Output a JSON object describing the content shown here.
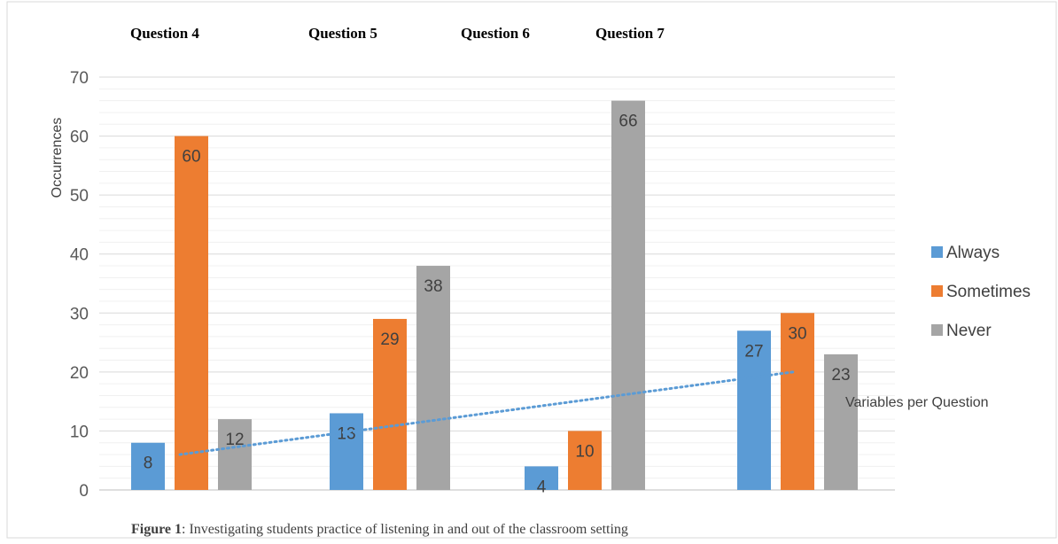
{
  "chart_data": {
    "type": "bar",
    "question_labels": [
      "Question 4",
      "Question 5",
      "Question 6",
      "Question 7"
    ],
    "categories": [
      "",
      "",
      "",
      ""
    ],
    "series": [
      {
        "name": "Always",
        "color": "#5B9BD5",
        "values": [
          8,
          13,
          4,
          27
        ]
      },
      {
        "name": "Sometimes",
        "color": "#ED7D31",
        "values": [
          60,
          29,
          10,
          30
        ]
      },
      {
        "name": "Never",
        "color": "#A5A5A5",
        "values": [
          12,
          38,
          66,
          23
        ]
      }
    ],
    "ylabel": "Occurrences",
    "ylim": [
      0,
      70
    ],
    "yticks": [
      0,
      10,
      20,
      30,
      40,
      50,
      60,
      70
    ],
    "grid": true,
    "legend": "right",
    "trendline": {
      "label": "Variables per Question",
      "style": "dotted",
      "color": "#5B9BD5",
      "start": 6,
      "end": 20
    },
    "caption": {
      "prefix": "Figure 1",
      "text": ": Investigating students practice of listening in and out of the classroom setting"
    }
  }
}
